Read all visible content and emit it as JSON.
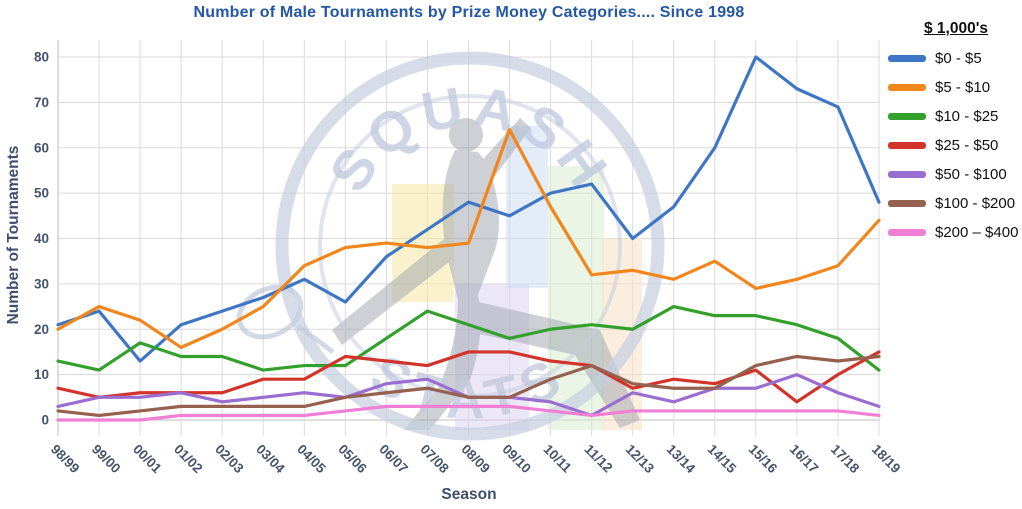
{
  "title": "Number of Male Tournaments by Prize Money Categories.... Since 1998",
  "axes": {
    "y_title": "Number of Tournaments",
    "x_title": "Season",
    "y_ticks": [
      0,
      10,
      20,
      30,
      40,
      50,
      60,
      70,
      80
    ]
  },
  "legend": {
    "title": "$ 1,000's",
    "entries": [
      {
        "label": "$0 - $5",
        "color": "#3E76C5"
      },
      {
        "label": "$5 - $10",
        "color": "#F0861C"
      },
      {
        "label": "$10 - $25",
        "color": "#33A02C"
      },
      {
        "label": "$25 - $50",
        "color": "#D2342B"
      },
      {
        "label": "$50 - $100",
        "color": "#9A6DD1"
      },
      {
        "label": "$100 - $200",
        "color": "#95604D"
      },
      {
        "label": "$200 – $400",
        "color": "#F07FD5"
      }
    ]
  },
  "watermark": {
    "top": "SQUASH",
    "bottom": "STATS"
  },
  "chart_data": {
    "type": "line",
    "title": "Number of Male Tournaments by Prize Money Categories.... Since 1998",
    "xlabel": "Season",
    "ylabel": "Number of Tournaments",
    "ylim": [
      0,
      80
    ],
    "grid": true,
    "legend_position": "right",
    "categories": [
      "98/99",
      "99/00",
      "00/01",
      "01/02",
      "02/03",
      "03/04",
      "04/05",
      "05/06",
      "06/07",
      "07/08",
      "08/09",
      "09/10",
      "10/11",
      "11/12",
      "12/13",
      "13/14",
      "14/15",
      "15/16",
      "16/17",
      "17/18",
      "18/19"
    ],
    "series": [
      {
        "name": "$0 - $5",
        "color": "#3E76C5",
        "values": [
          21,
          24,
          13,
          21,
          24,
          27,
          31,
          26,
          36,
          42,
          48,
          45,
          50,
          52,
          40,
          47,
          60,
          80,
          73,
          69,
          48
        ]
      },
      {
        "name": "$5 - $10",
        "color": "#F0861C",
        "values": [
          20,
          25,
          22,
          16,
          20,
          25,
          34,
          38,
          39,
          38,
          39,
          64,
          47,
          32,
          33,
          31,
          35,
          29,
          31,
          34,
          44
        ]
      },
      {
        "name": "$10 - $25",
        "color": "#33A02C",
        "values": [
          13,
          11,
          17,
          14,
          14,
          11,
          12,
          12,
          18,
          24,
          21,
          18,
          20,
          21,
          20,
          25,
          23,
          23,
          21,
          18,
          11
        ]
      },
      {
        "name": "$25 - $50",
        "color": "#D2342B",
        "values": [
          7,
          5,
          6,
          6,
          6,
          9,
          9,
          14,
          13,
          12,
          15,
          15,
          13,
          12,
          7,
          9,
          8,
          11,
          4,
          10,
          15
        ]
      },
      {
        "name": "$50 - $100",
        "color": "#9A6DD1",
        "values": [
          3,
          5,
          5,
          6,
          4,
          5,
          6,
          5,
          8,
          9,
          5,
          5,
          4,
          1,
          6,
          4,
          7,
          7,
          10,
          6,
          3
        ]
      },
      {
        "name": "$100 - $200",
        "color": "#95604D",
        "values": [
          2,
          1,
          2,
          3,
          3,
          3,
          3,
          5,
          6,
          7,
          5,
          5,
          9,
          12,
          8,
          7,
          7,
          12,
          14,
          13,
          14
        ]
      },
      {
        "name": "$200 – $400",
        "color": "#F07FD5",
        "values": [
          0,
          0,
          0,
          1,
          1,
          1,
          1,
          2,
          3,
          3,
          3,
          3,
          2,
          1,
          2,
          2,
          2,
          2,
          2,
          2,
          1
        ]
      }
    ]
  }
}
